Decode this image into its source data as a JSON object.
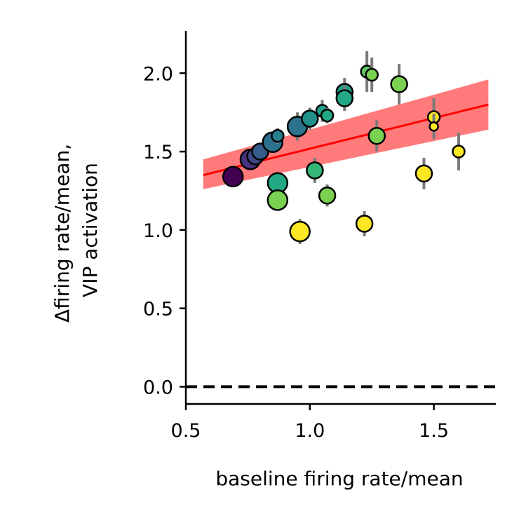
{
  "chart_data": {
    "type": "scatter",
    "title": "",
    "xlabel": "baseline firing rate/mean",
    "ylabel_lines": [
      "Δfiring rate/mean,",
      "VIP activation"
    ],
    "xlim": [
      0.5,
      1.75
    ],
    "ylim": [
      -0.11,
      2.27
    ],
    "xticks": [
      {
        "value": 0.5,
        "label": "0.5"
      },
      {
        "value": 1.0,
        "label": "1.0"
      },
      {
        "value": 1.5,
        "label": "1.5"
      }
    ],
    "yticks": [
      {
        "value": 0.0,
        "label": "0.0"
      },
      {
        "value": 0.5,
        "label": "0.5"
      },
      {
        "value": 1.0,
        "label": "1.0"
      },
      {
        "value": 1.5,
        "label": "1.5"
      },
      {
        "value": 2.0,
        "label": "2.0"
      }
    ],
    "grid": false,
    "legend": "none",
    "reference_line": {
      "y": 0.0,
      "style": "dashed",
      "color": "#000000"
    },
    "fit": {
      "color": "#ff0000",
      "band_color": "#ff7b7b",
      "x": [
        0.57,
        1.72
      ],
      "y": [
        1.35,
        1.8
      ],
      "band_lower": [
        1.26,
        1.64
      ],
      "band_upper": [
        1.45,
        1.96
      ]
    },
    "errorbar_color": "#7a7a7a",
    "points": [
      {
        "x": 0.69,
        "y": 1.34,
        "err": 0.05,
        "size": "large",
        "color": "#440154"
      },
      {
        "x": 0.76,
        "y": 1.45,
        "err": 0.05,
        "size": "large",
        "color": "#46327e"
      },
      {
        "x": 0.78,
        "y": 1.47,
        "err": 0.05,
        "size": "medium",
        "color": "#3f4889"
      },
      {
        "x": 0.8,
        "y": 1.5,
        "err": 0.05,
        "size": "medium",
        "color": "#365c8d"
      },
      {
        "x": 0.85,
        "y": 1.56,
        "err": 0.06,
        "size": "large",
        "color": "#2c728e"
      },
      {
        "x": 0.87,
        "y": 1.6,
        "err": 0.05,
        "size": "small",
        "color": "#277f8e"
      },
      {
        "x": 0.95,
        "y": 1.66,
        "err": 0.09,
        "size": "large",
        "color": "#2c728e"
      },
      {
        "x": 1.0,
        "y": 1.71,
        "err": 0.07,
        "size": "medium",
        "color": "#21918c"
      },
      {
        "x": 1.05,
        "y": 1.76,
        "err": 0.07,
        "size": "small",
        "color": "#1fa187"
      },
      {
        "x": 1.07,
        "y": 1.73,
        "err": 0.05,
        "size": "small",
        "color": "#22a884"
      },
      {
        "x": 1.14,
        "y": 1.88,
        "err": 0.09,
        "size": "medium",
        "color": "#1fa187"
      },
      {
        "x": 1.14,
        "y": 1.84,
        "err": 0.08,
        "size": "medium",
        "color": "#22a884"
      },
      {
        "x": 1.23,
        "y": 2.01,
        "err": 0.13,
        "size": "small",
        "color": "#5ec962"
      },
      {
        "x": 1.25,
        "y": 1.99,
        "err": 0.11,
        "size": "small",
        "color": "#7ad151"
      },
      {
        "x": 1.36,
        "y": 1.93,
        "err": 0.13,
        "size": "medium",
        "color": "#7ad151"
      },
      {
        "x": 1.27,
        "y": 1.6,
        "err": 0.1,
        "size": "medium",
        "color": "#7ad151"
      },
      {
        "x": 0.87,
        "y": 1.3,
        "err": 0.07,
        "size": "large",
        "color": "#22a884"
      },
      {
        "x": 0.87,
        "y": 1.19,
        "err": 0.06,
        "size": "large",
        "color": "#7ad151"
      },
      {
        "x": 1.02,
        "y": 1.38,
        "err": 0.08,
        "size": "medium",
        "color": "#35b779"
      },
      {
        "x": 1.07,
        "y": 1.22,
        "err": 0.07,
        "size": "medium",
        "color": "#7ad151"
      },
      {
        "x": 0.96,
        "y": 0.99,
        "err": 0.08,
        "size": "large",
        "color": "#fde725"
      },
      {
        "x": 1.22,
        "y": 1.04,
        "err": 0.08,
        "size": "medium",
        "color": "#fde725"
      },
      {
        "x": 1.46,
        "y": 1.36,
        "err": 0.1,
        "size": "medium",
        "color": "#fde725"
      },
      {
        "x": 1.5,
        "y": 1.72,
        "err": 0.12,
        "size": "small",
        "color": "#fde725"
      },
      {
        "x": 1.5,
        "y": 1.66,
        "err": 0.08,
        "size": "tiny",
        "color": "#fde725"
      },
      {
        "x": 1.6,
        "y": 1.5,
        "err": 0.12,
        "size": "small",
        "color": "#fde725"
      }
    ]
  }
}
